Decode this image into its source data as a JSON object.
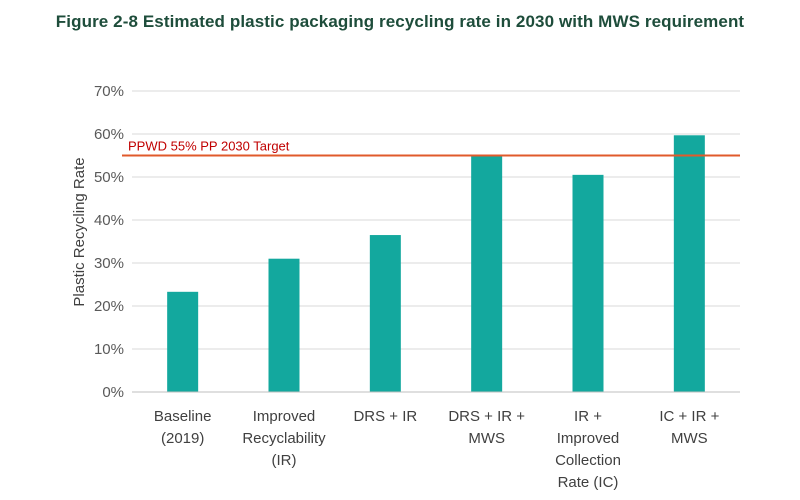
{
  "figure": {
    "title": "Figure 2-8 Estimated plastic packaging recycling rate in 2030 with MWS requirement"
  },
  "chart_data": {
    "type": "bar",
    "title": "",
    "categories": [
      [
        "Baseline",
        "(2019)"
      ],
      [
        "Improved",
        "Recyclability",
        "(IR)"
      ],
      [
        "DRS + IR"
      ],
      [
        "DRS + IR +",
        "MWS"
      ],
      [
        "IR +",
        "Improved",
        "Collection",
        "Rate (IC)"
      ],
      [
        "IC + IR +",
        "MWS"
      ]
    ],
    "values": [
      23.3,
      31.0,
      36.5,
      55.0,
      50.5,
      59.7
    ],
    "bar_color": "#13a89e",
    "xlabel": "",
    "ylabel": "Plastic Recycling Rate",
    "ylim": [
      0,
      70
    ],
    "yticks": [
      0,
      10,
      20,
      30,
      40,
      50,
      60,
      70
    ],
    "ytick_suffix": "%",
    "grid": true,
    "reference_line": {
      "value": 55,
      "label": "PPWD 55% PP 2030 Target",
      "color": "#e05a2b",
      "label_color": "#c00000"
    }
  }
}
